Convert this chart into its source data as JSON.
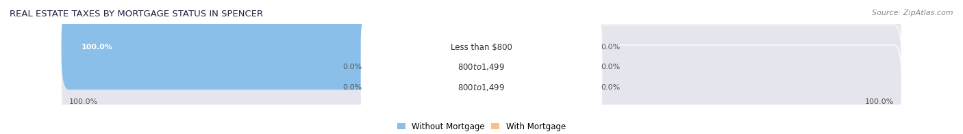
{
  "title": "REAL ESTATE TAXES BY MORTGAGE STATUS IN SPENCER",
  "source": "Source: ZipAtlas.com",
  "rows": [
    {
      "label": "Less than $800",
      "without_mortgage": 100.0,
      "with_mortgage": 0.0
    },
    {
      "label": "$800 to $1,499",
      "without_mortgage": 0.0,
      "with_mortgage": 0.0
    },
    {
      "label": "$800 to $1,499",
      "without_mortgage": 0.0,
      "with_mortgage": 0.0
    }
  ],
  "color_without": "#89bfe8",
  "color_with": "#f2c18c",
  "bar_bg_color": "#e5e5ed",
  "bar_height": 0.62,
  "title_fontsize": 9.5,
  "source_fontsize": 8,
  "tick_fontsize": 8,
  "label_fontsize": 8.5,
  "value_fontsize": 8,
  "legend_fontsize": 8.5,
  "fig_width": 14.06,
  "fig_height": 1.96
}
